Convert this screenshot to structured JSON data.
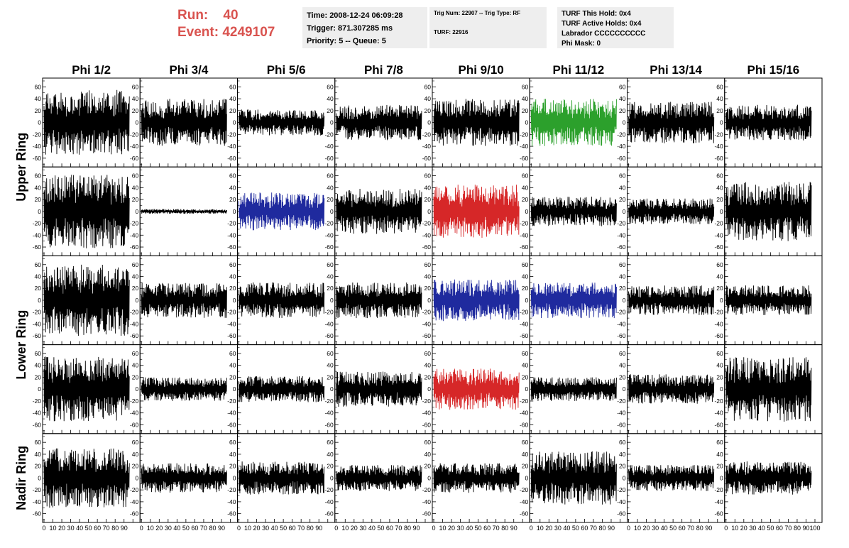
{
  "header": {
    "run_label": "Run:",
    "run_value": "40",
    "event_label": "Event:",
    "event_value": "4249107",
    "accent_color": "#d9534f"
  },
  "info_panels": {
    "time": "Time: 2008-12-24 06:09:28",
    "trigger": "Trigger: 871.307285 ms",
    "priority": "Priority: 5 -- Queue: 5",
    "trig_num": "Trig Num: 22907 -- Trig Type: RF",
    "turf": "TURF: 22916",
    "turf_this_hold": "TURF This Hold: 0x4",
    "turf_active_holds": "TURF Active Holds: 0x4",
    "labrador": "Labrador CCCCCCCCCC",
    "phi_mask": "Phi Mask: 0",
    "panel_color": "#eeeeee"
  },
  "chart_data": {
    "type": "line",
    "columns": [
      "Phi 1/2",
      "Phi 3/4",
      "Phi 5/6",
      "Phi 7/8",
      "Phi 9/10",
      "Phi 11/12",
      "Phi 13/14",
      "Phi 15/16"
    ],
    "ring_labels": [
      {
        "label": "Upper Ring",
        "rows": [
          0,
          1
        ]
      },
      {
        "label": "Lower Ring",
        "rows": [
          2,
          3
        ]
      },
      {
        "label": "Nadir Ring",
        "rows": [
          4
        ]
      }
    ],
    "xlim": [
      0,
      100
    ],
    "xticks": [
      0,
      10,
      20,
      30,
      40,
      50,
      60,
      70,
      80,
      90,
      100
    ],
    "xtick_labels": [
      "0",
      "10",
      "20",
      "30",
      "40",
      "50",
      "60",
      "70",
      "80",
      "90",
      "100"
    ],
    "ylim": [
      -70,
      70
    ],
    "yticks": [
      -60,
      -40,
      -20,
      0,
      20,
      40,
      60
    ],
    "ytick_labels": [
      "-60",
      "-40",
      "-20",
      "0",
      "20",
      "40",
      "60"
    ],
    "trace_x_range": [
      0,
      96
    ],
    "amplitude_note": "approximate peak amplitude per channel (waveforms are noise-like)",
    "panels": [
      [
        {
          "amplitude": 55,
          "color": "#000000"
        },
        {
          "amplitude": 40,
          "color": "#000000"
        },
        {
          "amplitude": 22,
          "color": "#000000"
        },
        {
          "amplitude": 30,
          "color": "#000000"
        },
        {
          "amplitude": 40,
          "color": "#000000"
        },
        {
          "amplitude": 40,
          "color": "#2ca02c"
        },
        {
          "amplitude": 35,
          "color": "#000000"
        },
        {
          "amplitude": 30,
          "color": "#000000"
        }
      ],
      [
        {
          "amplitude": 62,
          "color": "#000000"
        },
        {
          "amplitude": 4,
          "color": "#000000"
        },
        {
          "amplitude": 32,
          "color": "#1f2a9e"
        },
        {
          "amplitude": 38,
          "color": "#000000"
        },
        {
          "amplitude": 45,
          "color": "#d62728"
        },
        {
          "amplitude": 25,
          "color": "#000000"
        },
        {
          "amplitude": 22,
          "color": "#000000"
        },
        {
          "amplitude": 50,
          "color": "#000000"
        }
      ],
      [
        {
          "amplitude": 60,
          "color": "#000000"
        },
        {
          "amplitude": 30,
          "color": "#000000"
        },
        {
          "amplitude": 30,
          "color": "#000000"
        },
        {
          "amplitude": 30,
          "color": "#000000"
        },
        {
          "amplitude": 35,
          "color": "#1f2a9e"
        },
        {
          "amplitude": 30,
          "color": "#1f2a9e"
        },
        {
          "amplitude": 25,
          "color": "#000000"
        },
        {
          "amplitude": 25,
          "color": "#000000"
        }
      ],
      [
        {
          "amplitude": 55,
          "color": "#000000"
        },
        {
          "amplitude": 20,
          "color": "#000000"
        },
        {
          "amplitude": 22,
          "color": "#000000"
        },
        {
          "amplitude": 30,
          "color": "#000000"
        },
        {
          "amplitude": 35,
          "color": "#d62728"
        },
        {
          "amplitude": 20,
          "color": "#000000"
        },
        {
          "amplitude": 25,
          "color": "#000000"
        },
        {
          "amplitude": 55,
          "color": "#000000"
        }
      ],
      [
        {
          "amplitude": 50,
          "color": "#000000"
        },
        {
          "amplitude": 25,
          "color": "#000000"
        },
        {
          "amplitude": 28,
          "color": "#000000"
        },
        {
          "amplitude": 22,
          "color": "#000000"
        },
        {
          "amplitude": 25,
          "color": "#000000"
        },
        {
          "amplitude": 45,
          "color": "#000000"
        },
        {
          "amplitude": 22,
          "color": "#000000"
        },
        {
          "amplitude": 28,
          "color": "#000000"
        }
      ]
    ]
  }
}
